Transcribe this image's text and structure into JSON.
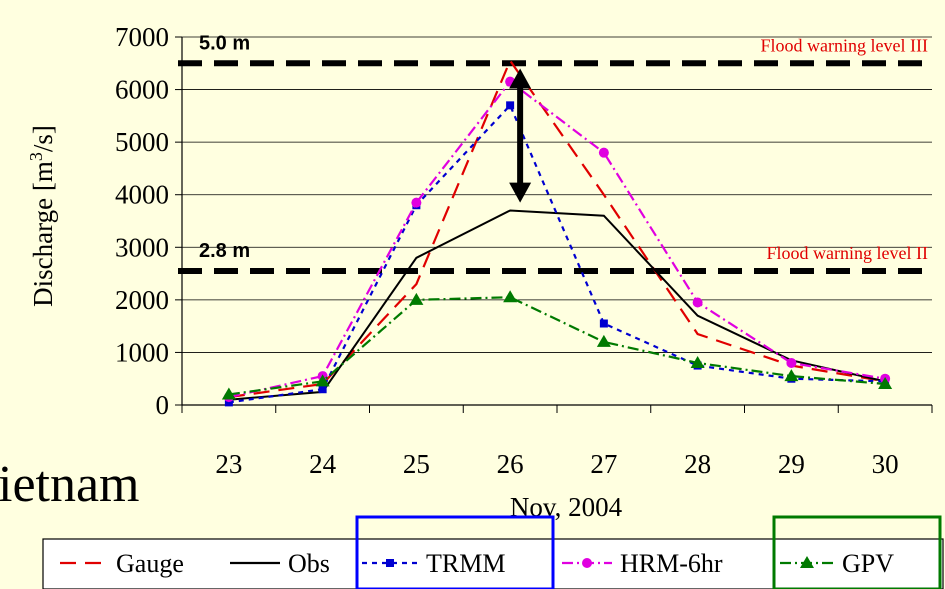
{
  "background_text": "ietnam",
  "chart_data": {
    "type": "line",
    "categories": [
      "23",
      "24",
      "25",
      "26",
      "27",
      "28",
      "29",
      "30"
    ],
    "xlabel": "Nov, 2004",
    "ylabel": "Discharge [m3/s]",
    "ylabel_parts": {
      "main": "Discharge [m",
      "sup": "3",
      "tail": "/s]"
    },
    "ylim": [
      0,
      7000
    ],
    "yticks": [
      0,
      1000,
      2000,
      3000,
      4000,
      5000,
      6000,
      7000
    ],
    "grid": "horizontal",
    "legend_position": "bottom",
    "series": [
      {
        "name": "Gauge",
        "color": "#E00000",
        "dash": "long-dash",
        "marker": "none",
        "values": [
          150,
          400,
          2300,
          6550,
          4000,
          1350,
          750,
          450
        ]
      },
      {
        "name": "Obs",
        "color": "#000000",
        "dash": "solid",
        "marker": "none",
        "values": [
          100,
          250,
          2800,
          3700,
          3600,
          1700,
          850,
          450
        ]
      },
      {
        "name": "TRMM",
        "color": "#0000D0",
        "dash": "dotted",
        "marker": "square",
        "values": [
          50,
          300,
          3800,
          5700,
          1550,
          750,
          500,
          450
        ]
      },
      {
        "name": "HRM-6hr",
        "color": "#E000E0",
        "dash": "dash-dot",
        "marker": "circle",
        "values": [
          150,
          550,
          3850,
          6150,
          4800,
          1950,
          800,
          500
        ]
      },
      {
        "name": "GPV",
        "color": "#007A00",
        "dash": "dash-dot",
        "marker": "triangle",
        "values": [
          200,
          450,
          2000,
          2050,
          1200,
          800,
          550,
          400
        ]
      }
    ],
    "reference_lines": [
      {
        "value": 6500,
        "depth_label": "5.0 m",
        "warning_label": "Flood warning level III"
      },
      {
        "value": 2550,
        "depth_label": "2.8 m",
        "warning_label": "Flood warning level II"
      }
    ],
    "annotation": {
      "type": "double-arrow",
      "x": "26",
      "from": 6400,
      "to": 3850
    },
    "highlight_boxes": [
      {
        "series": "TRMM",
        "color": "#0000FF"
      },
      {
        "series": "GPV",
        "color": "#007A00"
      }
    ]
  }
}
